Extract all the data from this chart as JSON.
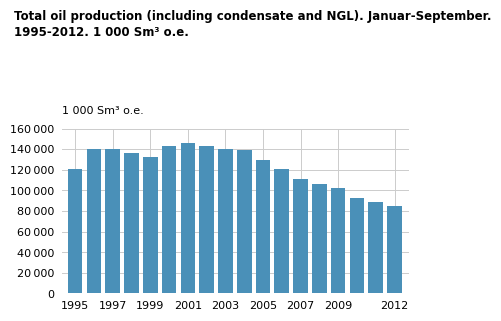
{
  "title": "Total oil production (including condensate and NGL). Januar-September.\n1995-2012. 1 000 Sm³ o.e.",
  "ylabel": "1 000 Sm³ o.e.",
  "years": [
    1995,
    1996,
    1997,
    1998,
    1999,
    2000,
    2001,
    2002,
    2003,
    2004,
    2005,
    2006,
    2007,
    2008,
    2009,
    2010,
    2011,
    2012
  ],
  "values": [
    121000,
    140000,
    140500,
    136000,
    132000,
    143500,
    146000,
    143000,
    140000,
    139500,
    129500,
    121000,
    111000,
    106000,
    102000,
    92500,
    88500,
    85000
  ],
  "bar_color": "#4a90b8",
  "ylim": [
    0,
    160000
  ],
  "yticks": [
    0,
    20000,
    40000,
    60000,
    80000,
    100000,
    120000,
    140000,
    160000
  ],
  "xtick_labels": [
    "1995",
    "1997",
    "1999",
    "2001",
    "2003",
    "2005",
    "2007",
    "2009",
    "2012"
  ],
  "xtick_positions": [
    1995,
    1997,
    1999,
    2001,
    2003,
    2005,
    2007,
    2009,
    2012
  ],
  "background_color": "#ffffff",
  "grid_color": "#cccccc",
  "title_fontsize": 8.5,
  "ylabel_fontsize": 8.0,
  "tick_fontsize": 8.0,
  "bar_width": 0.78
}
